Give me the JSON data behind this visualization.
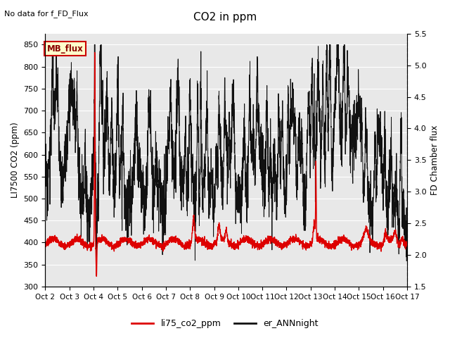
{
  "title": "CO2 in ppm",
  "top_left_text": "No data for f_FD_Flux",
  "ylabel_left": "LI7500 CO2 (ppm)",
  "ylabel_right": "FD Chamber flux",
  "ylim_left": [
    300,
    875
  ],
  "ylim_right": [
    1.5,
    5.5
  ],
  "yticks_left": [
    300,
    350,
    400,
    450,
    500,
    550,
    600,
    650,
    700,
    750,
    800,
    850
  ],
  "yticks_right": [
    1.5,
    2.0,
    2.5,
    3.0,
    3.5,
    4.0,
    4.5,
    5.0,
    5.5
  ],
  "xtick_labels": [
    "Oct 2",
    "Oct 3",
    "Oct 4",
    "Oct 5",
    "Oct 6",
    "Oct 7",
    "Oct 8",
    "Oct 9",
    "Oct 10",
    "Oct 11",
    "Oct 12",
    "Oct 13",
    "Oct 14",
    "Oct 15",
    "Oct 16",
    "Oct 17"
  ],
  "legend_label1": "li75_co2_ppm",
  "legend_label2": "er_ANNnight",
  "legend_color1": "#dd0000",
  "legend_color2": "#111111",
  "mb_flux_box_color": "#ffffcc",
  "mb_flux_box_edgecolor": "#cc0000",
  "plot_bg_color": "#e8e8e8",
  "grid_color": "#ffffff",
  "n_points": 3600
}
